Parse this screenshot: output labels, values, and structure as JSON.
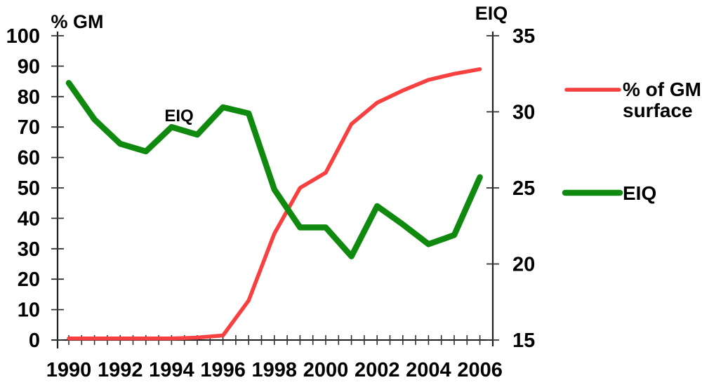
{
  "chart_data": {
    "type": "line",
    "title": "",
    "x": [
      1990,
      1991,
      1992,
      1993,
      1994,
      1995,
      1996,
      1997,
      1998,
      1999,
      2000,
      2001,
      2002,
      2003,
      2004,
      2005,
      2006
    ],
    "x_tick_labels": [
      "1990",
      "1992",
      "1994",
      "1996",
      "1998",
      "2000",
      "2002",
      "2004",
      "2006"
    ],
    "x_minor_tick_step": 0.5,
    "left_axis": {
      "label": "% GM",
      "min": 0,
      "max": 100,
      "ticks": [
        0,
        10,
        20,
        30,
        40,
        50,
        60,
        70,
        80,
        90,
        100
      ]
    },
    "right_axis": {
      "label": "EIQ",
      "min": 15,
      "max": 35,
      "ticks": [
        15,
        20,
        25,
        30,
        35
      ]
    },
    "grid": "off",
    "legend_position": "right",
    "series": [
      {
        "name": "% of GM surface",
        "legend_line1": "% of GM",
        "legend_line2": "surface",
        "axis": "left",
        "color": "#f94040",
        "values": [
          0.5,
          0.5,
          0.5,
          0.5,
          0.5,
          0.8,
          1.5,
          13,
          35,
          50,
          55,
          71,
          78,
          82,
          85.5,
          87.5,
          89
        ]
      },
      {
        "name": "EIQ",
        "legend_line1": "EIQ",
        "legend_line2": "",
        "axis": "right",
        "color": "#0f8a0f",
        "values": [
          31.9,
          29.5,
          27.9,
          27.4,
          29.0,
          28.5,
          30.3,
          29.9,
          24.9,
          22.4,
          22.4,
          20.5,
          23.8,
          22.6,
          21.3,
          21.9,
          25.7
        ]
      }
    ],
    "annotation": {
      "text": "EIQ"
    }
  }
}
